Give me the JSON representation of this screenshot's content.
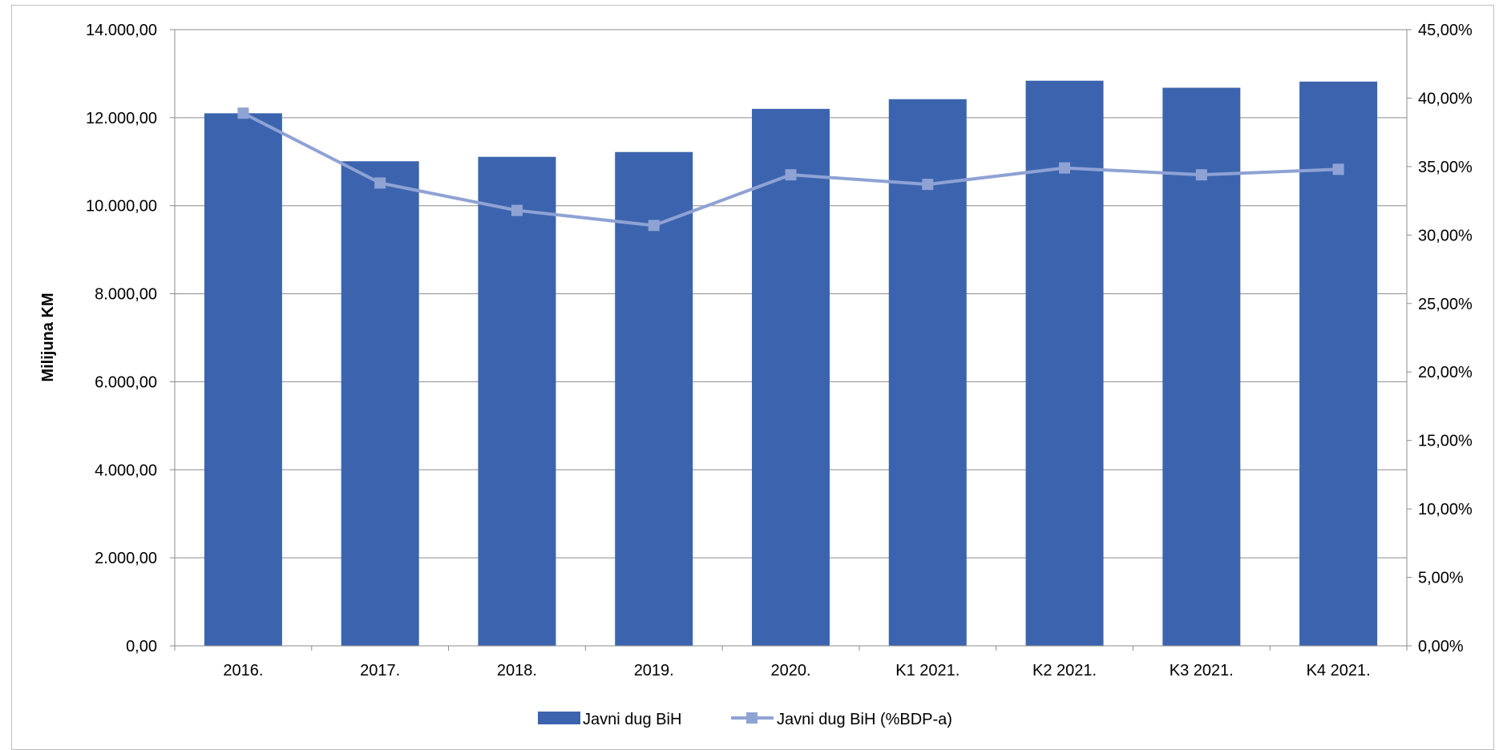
{
  "chart_data": {
    "type": "bar",
    "categories": [
      "2016.",
      "2017.",
      "2018.",
      "2019.",
      "2020.",
      "K1 2021.",
      "K2 2021.",
      "K3 2021.",
      "K4 2021."
    ],
    "series": [
      {
        "name": "Javni dug BiH",
        "type": "bar",
        "axis": "left",
        "color": "#3c64ae",
        "values": [
          12100,
          11010,
          11110,
          11220,
          12200,
          12420,
          12840,
          12680,
          12820
        ]
      },
      {
        "name": "Javni dug BiH (%BDP-a)",
        "type": "line",
        "axis": "right",
        "color": "#8fa2d4",
        "values": [
          38.9,
          33.8,
          31.8,
          30.7,
          34.4,
          33.7,
          34.9,
          34.4,
          34.8
        ]
      }
    ],
    "ylabel": "Milijuna KM",
    "ylim": [
      0,
      14000
    ],
    "y2lim": [
      0,
      45
    ],
    "yticks": [
      "0,00",
      "2.000,00",
      "4.000,00",
      "6.000,00",
      "8.000,00",
      "10.000,00",
      "12.000,00",
      "14.000,00"
    ],
    "y2ticks": [
      "0,00%",
      "5,00%",
      "10,00%",
      "15,00%",
      "20,00%",
      "25,00%",
      "30,00%",
      "35,00%",
      "40,00%",
      "45,00%"
    ],
    "grid": true,
    "legend": "bottom"
  }
}
